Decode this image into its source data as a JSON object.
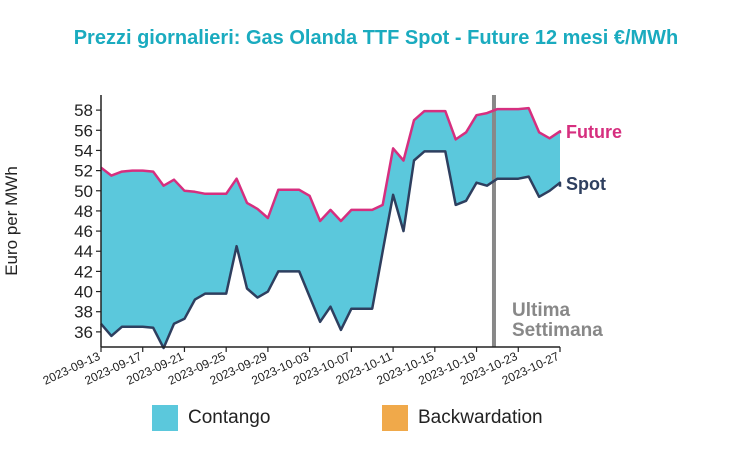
{
  "chart_data": {
    "type": "area",
    "title": "Prezzi giornalieri: Gas Olanda TTF Spot - Future 12 mesi €/MWh",
    "xlabel": "",
    "ylabel": "Euro per MWh",
    "ylim": [
      34.5,
      59.5
    ],
    "yticks": [
      36,
      38,
      40,
      42,
      44,
      46,
      48,
      50,
      52,
      54,
      56,
      58
    ],
    "xlim": [
      "2023-09-13",
      "2023-10-27"
    ],
    "xticks": [
      "2023-09-13",
      "2023-09-17",
      "2023-09-21",
      "2023-09-25",
      "2023-09-29",
      "2023-10-03",
      "2023-10-07",
      "2023-10-11",
      "2023-10-15",
      "2023-10-19",
      "2023-10-23",
      "2023-10-27"
    ],
    "series": [
      {
        "name": "Future",
        "color": "#d62f7f",
        "points": [
          [
            "2023-09-13",
            52.3
          ],
          [
            "2023-09-14",
            51.5
          ],
          [
            "2023-09-15",
            51.9
          ],
          [
            "2023-09-16",
            52.0
          ],
          [
            "2023-09-17",
            52.0
          ],
          [
            "2023-09-18",
            51.9
          ],
          [
            "2023-09-19",
            50.5
          ],
          [
            "2023-09-20",
            51.1
          ],
          [
            "2023-09-21",
            50.0
          ],
          [
            "2023-09-22",
            49.9
          ],
          [
            "2023-09-23",
            49.7
          ],
          [
            "2023-09-24",
            49.7
          ],
          [
            "2023-09-25",
            49.7
          ],
          [
            "2023-09-26",
            51.2
          ],
          [
            "2023-09-27",
            48.8
          ],
          [
            "2023-09-28",
            48.2
          ],
          [
            "2023-09-29",
            47.3
          ],
          [
            "2023-09-30",
            50.1
          ],
          [
            "2023-10-01",
            50.1
          ],
          [
            "2023-10-02",
            50.1
          ],
          [
            "2023-10-03",
            49.5
          ],
          [
            "2023-10-04",
            47.0
          ],
          [
            "2023-10-05",
            48.1
          ],
          [
            "2023-10-06",
            47.0
          ],
          [
            "2023-10-07",
            48.1
          ],
          [
            "2023-10-08",
            48.1
          ],
          [
            "2023-10-09",
            48.1
          ],
          [
            "2023-10-10",
            48.6
          ],
          [
            "2023-10-11",
            54.2
          ],
          [
            "2023-10-12",
            53.0
          ],
          [
            "2023-10-13",
            57.0
          ],
          [
            "2023-10-14",
            57.9
          ],
          [
            "2023-10-15",
            57.9
          ],
          [
            "2023-10-16",
            57.9
          ],
          [
            "2023-10-17",
            55.1
          ],
          [
            "2023-10-18",
            55.8
          ],
          [
            "2023-10-19",
            57.5
          ],
          [
            "2023-10-20",
            57.7
          ],
          [
            "2023-10-21",
            58.1
          ],
          [
            "2023-10-22",
            58.1
          ],
          [
            "2023-10-23",
            58.1
          ],
          [
            "2023-10-24",
            58.2
          ],
          [
            "2023-10-25",
            55.8
          ],
          [
            "2023-10-26",
            55.2
          ],
          [
            "2023-10-27",
            55.9
          ],
          [
            "2023-10-28",
            55.7
          ]
        ]
      },
      {
        "name": "Spot",
        "color": "#2e3f5f",
        "points": [
          [
            "2023-09-13",
            36.8
          ],
          [
            "2023-09-14",
            35.6
          ],
          [
            "2023-09-15",
            36.5
          ],
          [
            "2023-09-16",
            36.5
          ],
          [
            "2023-09-17",
            36.5
          ],
          [
            "2023-09-18",
            36.4
          ],
          [
            "2023-09-19",
            34.4
          ],
          [
            "2023-09-20",
            36.8
          ],
          [
            "2023-09-21",
            37.3
          ],
          [
            "2023-09-22",
            39.2
          ],
          [
            "2023-09-23",
            39.8
          ],
          [
            "2023-09-24",
            39.8
          ],
          [
            "2023-09-25",
            39.8
          ],
          [
            "2023-09-26",
            44.5
          ],
          [
            "2023-09-27",
            40.3
          ],
          [
            "2023-09-28",
            39.4
          ],
          [
            "2023-09-29",
            40.0
          ],
          [
            "2023-09-30",
            42.0
          ],
          [
            "2023-10-01",
            42.0
          ],
          [
            "2023-10-02",
            42.0
          ],
          [
            "2023-10-03",
            39.5
          ],
          [
            "2023-10-04",
            37.0
          ],
          [
            "2023-10-05",
            38.5
          ],
          [
            "2023-10-06",
            36.2
          ],
          [
            "2023-10-07",
            38.3
          ],
          [
            "2023-10-08",
            38.3
          ],
          [
            "2023-10-09",
            38.3
          ],
          [
            "2023-10-10",
            44.0
          ],
          [
            "2023-10-11",
            49.6
          ],
          [
            "2023-10-12",
            46.0
          ],
          [
            "2023-10-13",
            53.0
          ],
          [
            "2023-10-14",
            53.9
          ],
          [
            "2023-10-15",
            53.9
          ],
          [
            "2023-10-16",
            53.9
          ],
          [
            "2023-10-17",
            48.6
          ],
          [
            "2023-10-18",
            49.0
          ],
          [
            "2023-10-19",
            50.8
          ],
          [
            "2023-10-20",
            50.5
          ],
          [
            "2023-10-21",
            51.2
          ],
          [
            "2023-10-22",
            51.2
          ],
          [
            "2023-10-23",
            51.2
          ],
          [
            "2023-10-24",
            51.4
          ],
          [
            "2023-10-25",
            49.4
          ],
          [
            "2023-10-26",
            50.0
          ],
          [
            "2023-10-27",
            50.8
          ],
          [
            "2023-10-28",
            50.4
          ]
        ]
      }
    ],
    "fills": {
      "contango": {
        "label": "Contango",
        "color": "#5bc8dc"
      },
      "backwardation": {
        "label": "Backwardation",
        "color": "#f0a94a"
      }
    },
    "annotation": {
      "date": "2023-10-20",
      "label_line1": "Ultima",
      "label_line2": "Settimana",
      "color": "#888888"
    },
    "grid": false,
    "legend_position": "bottom"
  }
}
